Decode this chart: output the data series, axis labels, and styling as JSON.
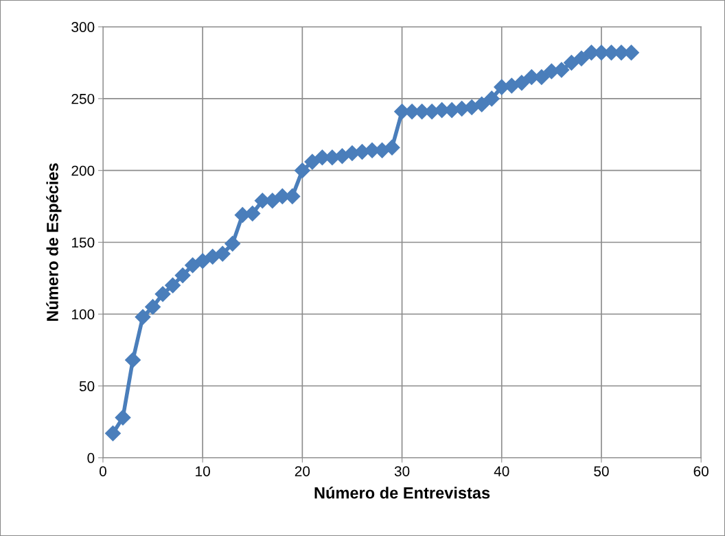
{
  "chart_data": {
    "type": "line",
    "xlabel": "Número de Entrevistas",
    "ylabel": "Número de Espécies",
    "x": [
      1,
      2,
      3,
      4,
      5,
      6,
      7,
      8,
      9,
      10,
      11,
      12,
      13,
      14,
      15,
      16,
      17,
      18,
      19,
      20,
      21,
      22,
      23,
      24,
      25,
      26,
      27,
      28,
      29,
      30,
      31,
      32,
      33,
      34,
      35,
      36,
      37,
      38,
      39,
      40,
      41,
      42,
      43,
      44,
      45,
      46,
      47,
      48,
      49,
      50,
      51,
      52,
      53
    ],
    "series": [
      {
        "color": "#4a7ebb",
        "values": [
          17,
          28,
          68,
          98,
          105,
          114,
          120,
          127,
          134,
          137,
          140,
          142,
          149,
          169,
          170,
          179,
          179,
          182,
          182,
          200,
          206,
          209,
          209,
          210,
          212,
          213,
          214,
          214,
          216,
          241,
          241,
          241,
          241,
          242,
          242,
          243,
          244,
          246,
          250,
          258,
          259,
          261,
          265,
          265,
          269,
          270,
          275,
          278,
          282,
          282,
          282,
          282,
          282
        ]
      }
    ],
    "xlim": [
      0,
      60
    ],
    "xticks": [
      0,
      10,
      20,
      30,
      40,
      50,
      60
    ],
    "ylim": [
      0,
      300
    ],
    "yticks": [
      0,
      50,
      100,
      150,
      200,
      250,
      300
    ],
    "grid": true,
    "marker": "diamond",
    "line_style": "solid",
    "legend": false
  }
}
